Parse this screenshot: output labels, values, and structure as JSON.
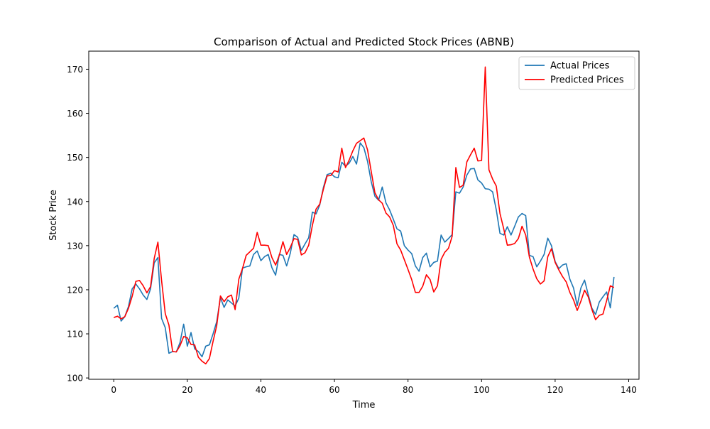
{
  "chart_data": {
    "type": "line",
    "title": "Comparison of Actual and Predicted Stock Prices (ABNB)",
    "xlabel": "Time",
    "ylabel": "Stock Price",
    "xlim": [
      -6.8,
      142.8
    ],
    "ylim": [
      99.7,
      174.1
    ],
    "xticks": [
      0,
      20,
      40,
      60,
      80,
      100,
      120,
      140
    ],
    "yticks": [
      100,
      110,
      120,
      130,
      140,
      150,
      160,
      170
    ],
    "grid": false,
    "legend_position": "upper right",
    "series": [
      {
        "name": "Actual Prices",
        "color": "#1f77b4",
        "values": [
          115.8,
          116.5,
          112.9,
          113.9,
          116.2,
          120.2,
          121.3,
          120.2,
          118.8,
          117.8,
          120.2,
          126.1,
          127.3,
          113.5,
          111.4,
          105.6,
          106.0,
          105.9,
          108.0,
          112.2,
          107.2,
          110.3,
          106.6,
          106.0,
          104.8,
          107.2,
          107.5,
          110.0,
          112.8,
          118.2,
          116.0,
          117.7,
          117.0,
          116.3,
          118.1,
          124.9,
          125.2,
          125.4,
          128.0,
          128.8,
          126.6,
          127.5,
          128.0,
          125.0,
          123.3,
          128.0,
          127.8,
          125.4,
          128.3,
          132.5,
          131.9,
          128.9,
          130.4,
          131.8,
          137.6,
          137.2,
          139.2,
          143.2,
          146.1,
          146.4,
          145.6,
          145.4,
          148.9,
          148.0,
          148.7,
          150.2,
          148.5,
          153.3,
          152.2,
          149.1,
          144.5,
          141.2,
          140.3,
          143.3,
          139.7,
          138.1,
          136.0,
          133.8,
          133.3,
          130.0,
          129.0,
          128.2,
          125.4,
          124.2,
          127.3,
          128.3,
          125.2,
          126.2,
          126.5,
          132.4,
          130.8,
          131.6,
          132.5,
          142.2,
          141.9,
          143.3,
          146.0,
          147.4,
          147.5,
          144.9,
          144.2,
          142.9,
          142.8,
          142.2,
          138.1,
          132.8,
          132.4,
          134.3,
          132.4,
          134.4,
          136.5,
          137.3,
          136.8,
          127.8,
          127.5,
          125.2,
          126.5,
          128.0,
          131.7,
          130.0,
          126.4,
          124.8,
          125.6,
          125.9,
          122.4,
          120.4,
          116.4,
          120.4,
          122.2,
          118.9,
          115.8,
          114.4,
          117.2,
          118.4,
          119.5,
          115.9,
          122.9
        ]
      },
      {
        "name": "Predicted Prices",
        "color": "#ff0000",
        "values": [
          113.7,
          114.0,
          113.4,
          113.9,
          115.8,
          118.5,
          121.9,
          122.1,
          120.9,
          119.3,
          120.7,
          127.1,
          130.8,
          122.1,
          114.6,
          112.0,
          106.0,
          105.9,
          107.3,
          109.4,
          109.1,
          107.6,
          107.5,
          104.7,
          103.8,
          103.2,
          104.4,
          108.3,
          111.9,
          118.6,
          117.3,
          118.4,
          118.8,
          115.5,
          122.4,
          124.8,
          127.8,
          128.6,
          129.4,
          133.0,
          130.1,
          130.1,
          130.0,
          127.3,
          125.6,
          127.8,
          130.9,
          128.0,
          129.6,
          131.6,
          131.4,
          127.9,
          128.4,
          130.1,
          134.6,
          138.3,
          139.4,
          142.8,
          145.8,
          145.9,
          147.0,
          146.7,
          152.1,
          147.7,
          149.4,
          151.5,
          153.2,
          153.8,
          154.4,
          151.7,
          146.8,
          142.0,
          140.4,
          139.6,
          137.4,
          136.5,
          134.6,
          130.4,
          129.0,
          126.8,
          124.6,
          122.3,
          119.4,
          119.4,
          120.8,
          123.4,
          122.3,
          119.5,
          120.9,
          126.9,
          128.5,
          129.4,
          132.1,
          147.7,
          143.2,
          143.7,
          149.0,
          150.6,
          152.1,
          149.2,
          149.3,
          170.5,
          147.2,
          145.1,
          143.5,
          137.3,
          133.9,
          130.1,
          130.2,
          130.5,
          131.6,
          134.4,
          132.4,
          127.4,
          124.7,
          122.5,
          121.3,
          122.0,
          127.5,
          129.3,
          126.2,
          124.5,
          123.0,
          121.8,
          119.4,
          117.7,
          115.3,
          117.4,
          119.9,
          118.4,
          115.5,
          113.2,
          114.2,
          114.5,
          117.5,
          120.9,
          120.5
        ]
      }
    ]
  }
}
